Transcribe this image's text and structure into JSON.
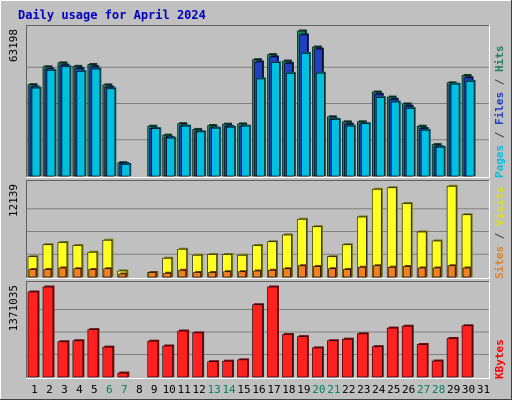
{
  "chart_data": {
    "type": "bar",
    "title": "Daily usage for April 2024",
    "categories": [
      "1",
      "2",
      "3",
      "4",
      "5",
      "6",
      "7",
      "8",
      "9",
      "10",
      "11",
      "12",
      "13",
      "14",
      "15",
      "16",
      "17",
      "18",
      "19",
      "20",
      "21",
      "22",
      "23",
      "24",
      "25",
      "26",
      "27",
      "28",
      "29",
      "30",
      "31"
    ],
    "weekend_categories": [
      "6",
      "7",
      "13",
      "14",
      "20",
      "21",
      "27",
      "28"
    ],
    "panels": [
      {
        "id": "hits-panel",
        "scale_label": "63198",
        "ymax": 63198,
        "side_label_parts": [
          {
            "text": "Pages",
            "color": "#00c0e0"
          },
          {
            "text": " / ",
            "color": "#404040"
          },
          {
            "text": "Files",
            "color": "#2040c0"
          },
          {
            "text": " / ",
            "color": "#404040"
          },
          {
            "text": "Hits",
            "color": "#208060"
          }
        ],
        "series": [
          {
            "name": "Hits",
            "color": "#208060",
            "values": [
              39800,
              47600,
              49300,
              47800,
              48600,
              39700,
              5800,
              0,
              21700,
              17800,
              22800,
              20300,
              22000,
              22600,
              22700,
              50700,
              52900,
              50100,
              63200,
              56200,
              25800,
              23600,
              23600,
              36600,
              34400,
              31400,
              21700,
              13700,
              40600,
              43800,
              0
            ]
          },
          {
            "name": "Files",
            "color": "#2040c0",
            "values": [
              38800,
              46600,
              48300,
              46800,
              47600,
              38700,
              5400,
              0,
              20700,
              16800,
              21800,
              19300,
              21000,
              21600,
              21700,
              49700,
              51900,
              49100,
              61500,
              55300,
              24800,
              22600,
              22600,
              35600,
              33400,
              30400,
              20700,
              12800,
              39600,
              42800,
              0
            ]
          },
          {
            "name": "Pages",
            "color": "#00c0e0",
            "values": [
              38300,
              46000,
              47600,
              45600,
              46600,
              38000,
              5000,
              0,
              20600,
              16500,
              21700,
              19200,
              20800,
              21200,
              21700,
              42300,
              49400,
              44700,
              53400,
              44800,
              24600,
              21700,
              22800,
              34200,
              32200,
              29400,
              19900,
              12500,
              40000,
              41200,
              0
            ]
          }
        ]
      },
      {
        "id": "visits-panel",
        "scale_label": "12139",
        "ymax": 12139,
        "side_label_parts": [
          {
            "text": "Sites",
            "color": "#e08020"
          },
          {
            "text": " / ",
            "color": "#404040"
          },
          {
            "text": "Visits",
            "color": "#e0e020"
          }
        ],
        "series": [
          {
            "name": "Visits",
            "color": "#ffff20",
            "values": [
              2700,
              4300,
              4600,
              4200,
              3300,
              4900,
              800,
              0,
              600,
              2500,
              3700,
              2900,
              3000,
              3000,
              2900,
              4200,
              4700,
              5600,
              7700,
              6700,
              2700,
              4300,
              8000,
              11700,
              11900,
              9800,
              6000,
              4800,
              12100,
              8300,
              0
            ]
          },
          {
            "name": "Sites",
            "color": "#f08020",
            "values": [
              1000,
              1000,
              1200,
              1100,
              1000,
              1100,
              400,
              0,
              600,
              500,
              900,
              600,
              600,
              700,
              700,
              800,
              900,
              1100,
              1500,
              1400,
              1100,
              1000,
              1300,
              1500,
              1300,
              1400,
              1200,
              1200,
              1500,
              1200,
              0
            ]
          }
        ]
      },
      {
        "id": "kbytes-panel",
        "scale_label": "1371035",
        "ymax": 1371035,
        "side_label_parts": [
          {
            "text": "KBytes",
            "color": "#ff0000"
          }
        ],
        "series": [
          {
            "name": "KBytes",
            "color": "#ff2020",
            "values": [
              1295000,
              1371035,
              537000,
              552000,
              722000,
              455000,
              60000,
              0,
              545000,
              472000,
              700000,
              672000,
              233000,
              241000,
              261000,
              1101000,
              1371035,
              647000,
              615000,
              443000,
              552000,
              576000,
              657000,
              462000,
              745000,
              773000,
              495000,
              243000,
              587000,
              780000,
              0
            ]
          }
        ]
      }
    ]
  }
}
